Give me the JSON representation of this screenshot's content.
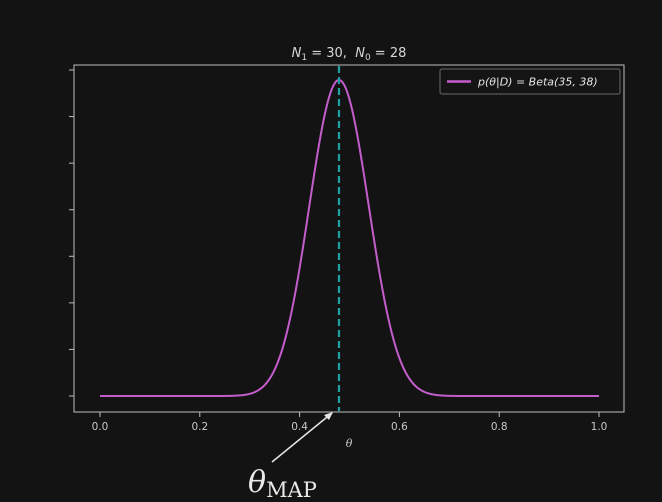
{
  "chart_data": {
    "type": "line",
    "title_parts": {
      "n1_symbol": "N",
      "n1_sub": "1",
      "n1_value": " = 30,  ",
      "n0_symbol": "N",
      "n0_sub": "0",
      "n0_value": " = 28"
    },
    "xlabel": "θ",
    "ylabel": "",
    "xlim": [
      0.0,
      1.0
    ],
    "x_ticks": [
      "0.0",
      "0.2",
      "0.4",
      "0.6",
      "0.8",
      "1.0"
    ],
    "y_tick_count": 8,
    "series": [
      {
        "name": "p(θ|D) = Beta(35, 38)",
        "distribution": "beta",
        "alpha": 35,
        "beta": 38,
        "color": "#c45dcc"
      }
    ],
    "vline": {
      "x": 0.4789,
      "style": "dashed",
      "color": "#1fa0a4"
    },
    "legend_placement": "top-right",
    "grid": false,
    "annotation": {
      "symbol": "θ",
      "subscript": "MAP",
      "arrow_to_x": 0.4789
    }
  },
  "colors": {
    "background": "#131313",
    "axes": "#bdbdbd",
    "curve": "#c45dcc",
    "vline": "#1fa0a4"
  }
}
